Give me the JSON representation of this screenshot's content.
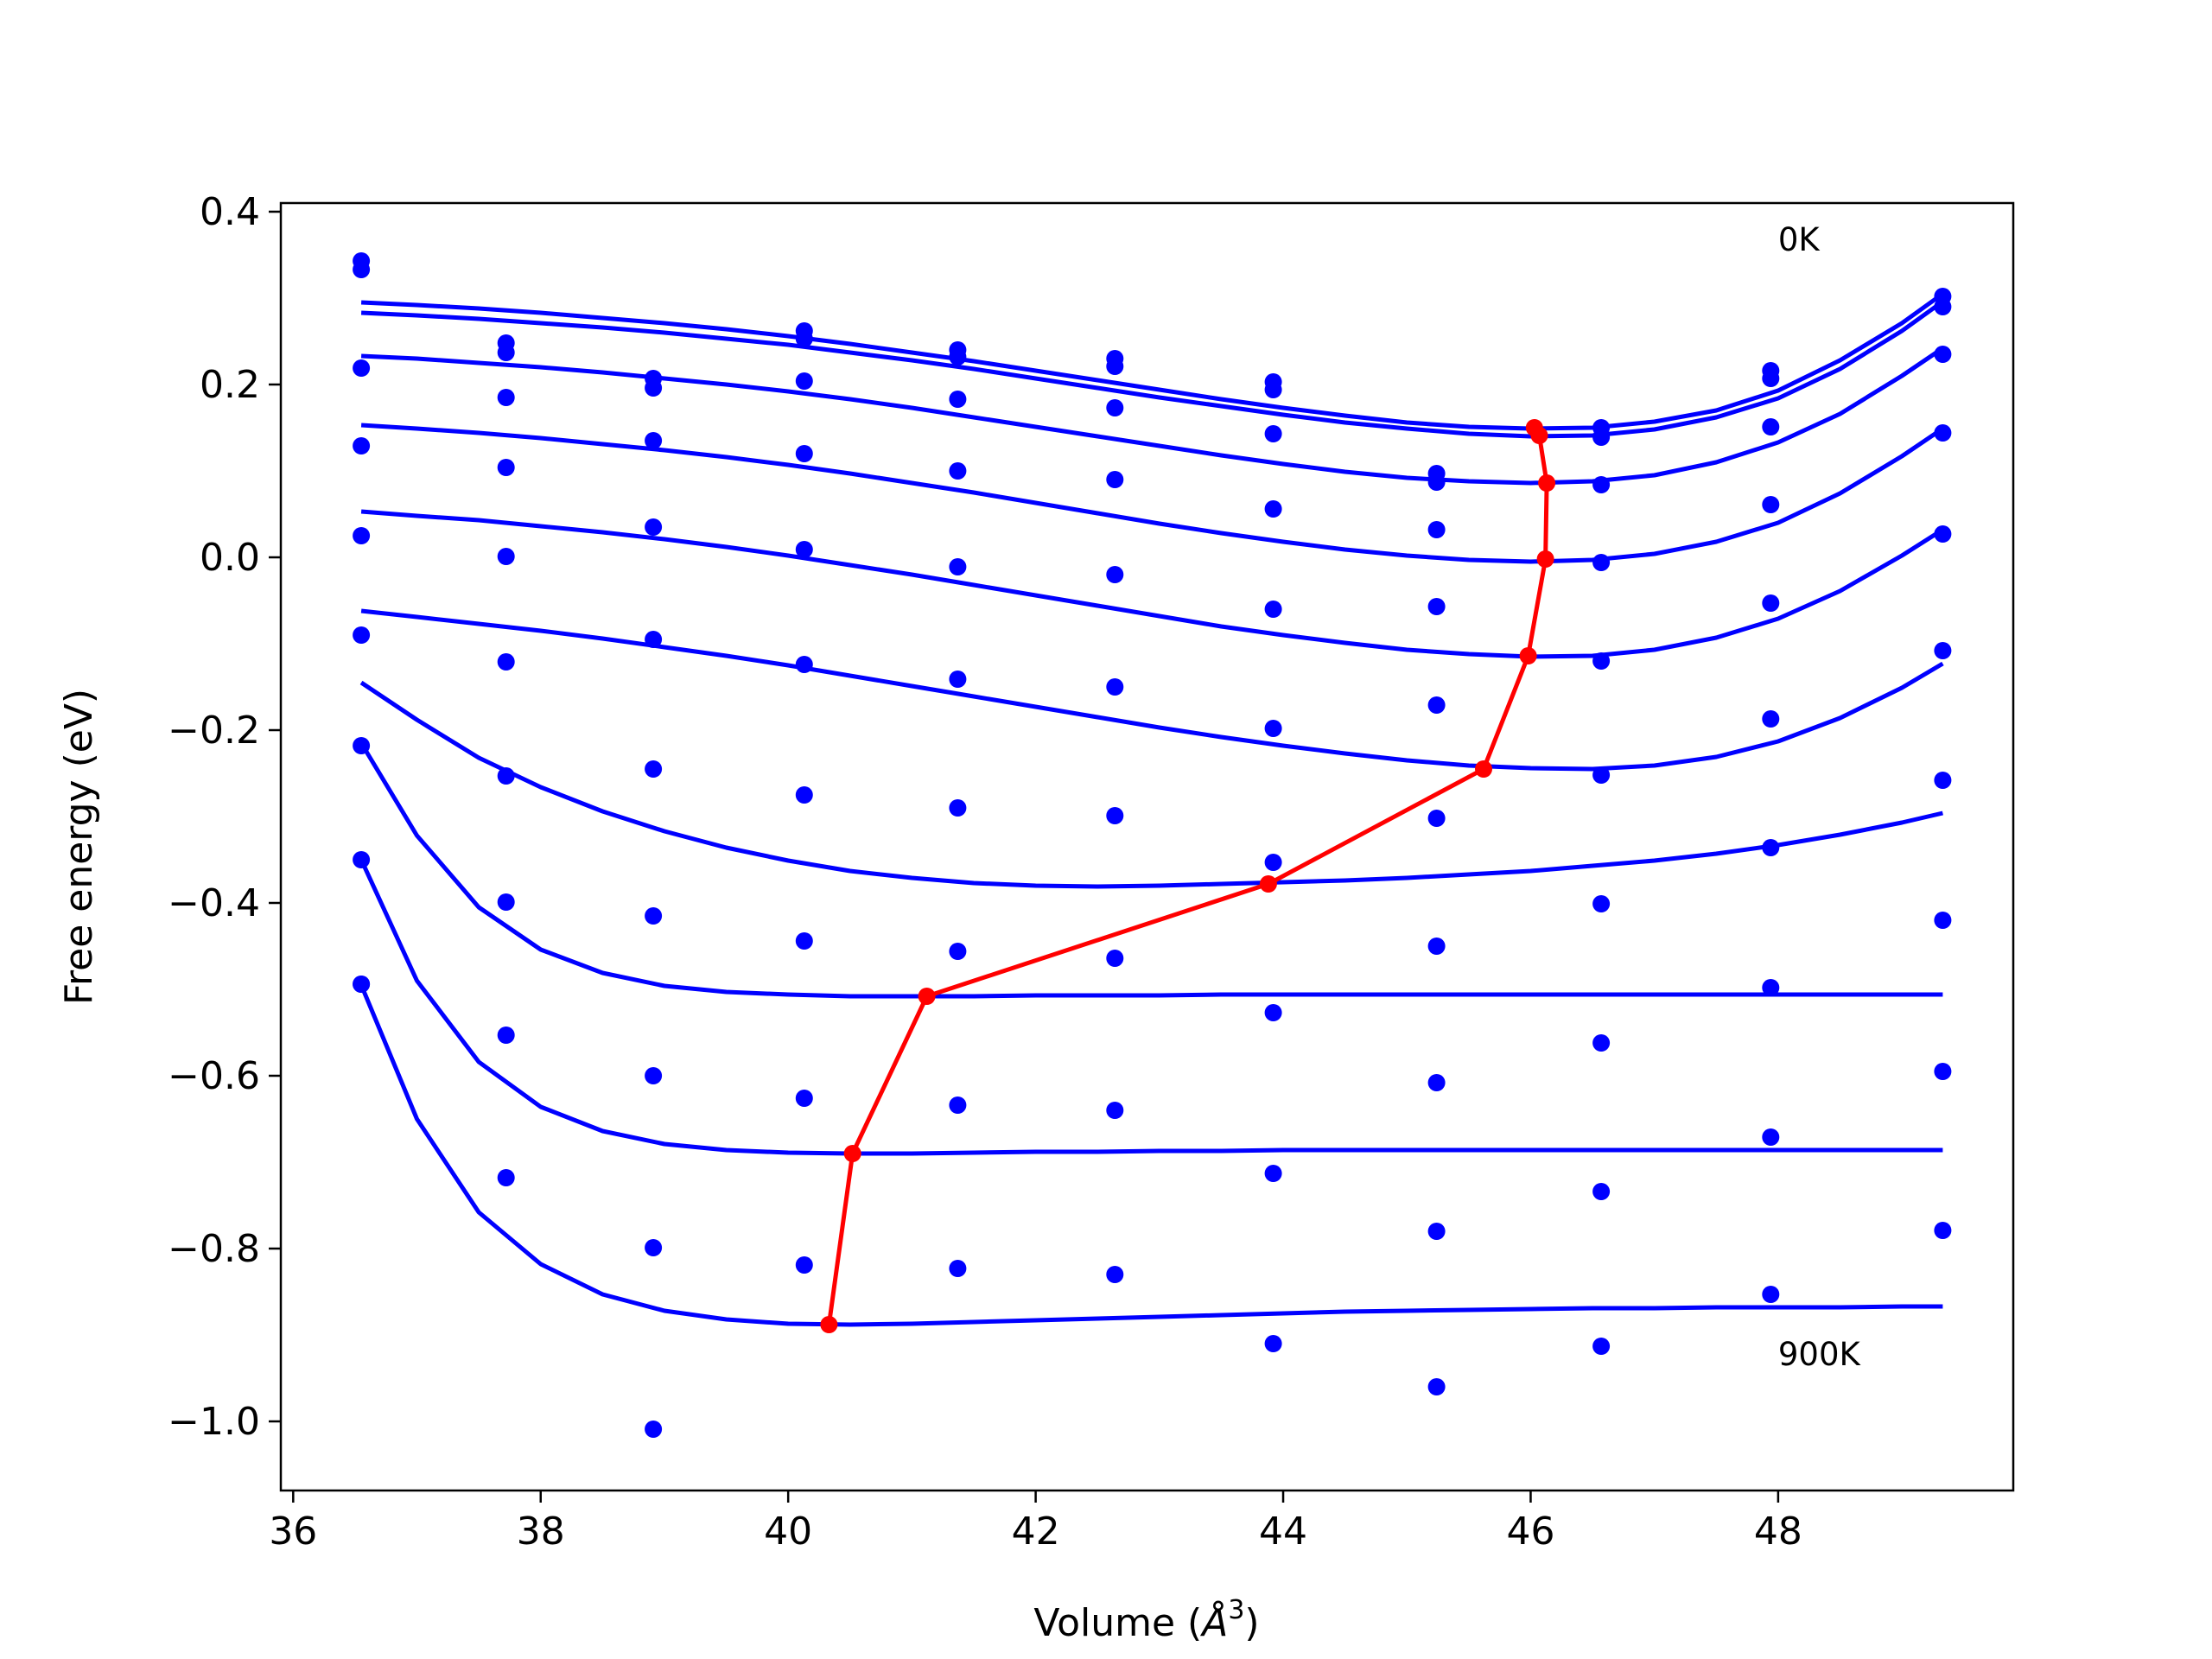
{
  "chart_data": {
    "type": "line",
    "xlabel_main": "Volume (",
    "xlabel_symbol": "Å",
    "xlabel_exp": "3",
    "xlabel_close": ")",
    "ylabel": "Free energy (eV)",
    "xlim": [
      35.9,
      49.9
    ],
    "ylim": [
      -1.08,
      0.41
    ],
    "xticks": [
      36,
      38,
      40,
      42,
      44,
      46,
      48
    ],
    "xtick_labels": [
      "36",
      "38",
      "40",
      "42",
      "44",
      "46",
      "48"
    ],
    "yticks": [
      0.4,
      0.2,
      0.0,
      -0.2,
      -0.4,
      -0.6,
      -0.8,
      -1.0
    ],
    "ytick_labels": [
      "0.4",
      "0.2",
      "0.0",
      "−0.2",
      "−0.4",
      "−0.6",
      "−0.8",
      "−1.0"
    ],
    "grid": false,
    "annotations": [
      {
        "text": "0K",
        "x": 48.0,
        "y": 0.355
      },
      {
        "text": "900K",
        "x": 48.0,
        "y": -0.935
      }
    ],
    "curve_color": "#0000ff",
    "minima_color": "#ff0000",
    "point_color": "#0000ff",
    "x_points": [
      36.55,
      37.72,
      38.91,
      40.13,
      41.37,
      42.64,
      43.92,
      45.24,
      46.57,
      47.94,
      49.33
    ],
    "point_series": [
      [
        0.343,
        0.248,
        0.207,
        0.262,
        0.24,
        0.23,
        0.203,
        0.097,
        0.15,
        0.216,
        0.302
      ],
      [
        0.333,
        0.237,
        0.196,
        0.253,
        0.232,
        0.221,
        0.194,
        0.087,
        0.139,
        0.207,
        0.29
      ],
      [
        0.219,
        0.185,
        0.135,
        0.204,
        0.183,
        0.173,
        0.143,
        0.032,
        0.084,
        0.151,
        0.235
      ],
      [
        0.129,
        0.104,
        0.035,
        0.12,
        0.1,
        0.09,
        0.056,
        -0.057,
        -0.006,
        0.061,
        0.144
      ],
      [
        0.025,
        0.001,
        -0.095,
        0.009,
        -0.011,
        -0.02,
        -0.06,
        -0.171,
        -0.12,
        -0.053,
        0.027
      ],
      [
        -0.09,
        -0.121,
        -0.245,
        -0.124,
        -0.141,
        -0.15,
        -0.198,
        -0.302,
        -0.252,
        -0.187,
        -0.108
      ],
      [
        -0.218,
        -0.253,
        -0.415,
        -0.275,
        -0.29,
        -0.299,
        -0.353,
        -0.45,
        -0.401,
        -0.336,
        -0.258
      ],
      [
        -0.35,
        -0.399,
        -0.6,
        -0.444,
        -0.456,
        -0.464,
        -0.527,
        -0.608,
        -0.562,
        -0.498,
        -0.42
      ],
      [
        -0.494,
        -0.553,
        -0.799,
        -0.626,
        -0.634,
        -0.64,
        -0.713,
        -0.78,
        -0.734,
        -0.671,
        -0.595
      ],
      [
        -0.494,
        -0.718,
        -1.009,
        -0.819,
        -0.823,
        -0.83,
        -0.91,
        -0.96,
        -0.913,
        -0.853,
        -0.779
      ]
    ],
    "curve_x": [
      36.55,
      37.0,
      37.5,
      38.0,
      38.5,
      39.0,
      39.5,
      40.0,
      40.5,
      41.0,
      41.5,
      42.0,
      42.5,
      43.0,
      43.5,
      44.0,
      44.5,
      45.0,
      45.5,
      46.0,
      46.5,
      47.0,
      47.5,
      48.0,
      48.5,
      49.0,
      49.33
    ],
    "curves": [
      [
        0.295,
        0.292,
        0.288,
        0.283,
        0.277,
        0.271,
        0.264,
        0.256,
        0.247,
        0.237,
        0.227,
        0.216,
        0.205,
        0.194,
        0.183,
        0.173,
        0.164,
        0.156,
        0.151,
        0.149,
        0.15,
        0.157,
        0.17,
        0.193,
        0.228,
        0.271,
        0.305
      ],
      [
        0.283,
        0.28,
        0.276,
        0.271,
        0.266,
        0.26,
        0.253,
        0.246,
        0.237,
        0.228,
        0.218,
        0.207,
        0.196,
        0.185,
        0.175,
        0.165,
        0.156,
        0.149,
        0.143,
        0.14,
        0.141,
        0.148,
        0.162,
        0.184,
        0.218,
        0.262,
        0.296
      ],
      [
        0.233,
        0.23,
        0.225,
        0.22,
        0.214,
        0.207,
        0.2,
        0.192,
        0.183,
        0.173,
        0.162,
        0.151,
        0.14,
        0.129,
        0.118,
        0.108,
        0.099,
        0.092,
        0.088,
        0.086,
        0.088,
        0.095,
        0.11,
        0.133,
        0.166,
        0.21,
        0.242
      ],
      [
        0.153,
        0.149,
        0.144,
        0.138,
        0.131,
        0.124,
        0.116,
        0.107,
        0.097,
        0.086,
        0.075,
        0.063,
        0.051,
        0.039,
        0.028,
        0.018,
        0.009,
        0.002,
        -0.003,
        -0.005,
        -0.003,
        0.004,
        0.018,
        0.04,
        0.074,
        0.117,
        0.149
      ],
      [
        0.053,
        0.048,
        0.043,
        0.036,
        0.029,
        0.021,
        0.012,
        0.002,
        -0.009,
        -0.02,
        -0.032,
        -0.044,
        -0.056,
        -0.068,
        -0.08,
        -0.09,
        -0.099,
        -0.107,
        -0.112,
        -0.115,
        -0.114,
        -0.107,
        -0.093,
        -0.071,
        -0.039,
        0.002,
        0.032
      ],
      [
        -0.062,
        -0.069,
        -0.077,
        -0.085,
        -0.094,
        -0.104,
        -0.114,
        -0.125,
        -0.137,
        -0.149,
        -0.161,
        -0.173,
        -0.185,
        -0.197,
        -0.208,
        -0.218,
        -0.227,
        -0.235,
        -0.241,
        -0.244,
        -0.245,
        -0.241,
        -0.231,
        -0.213,
        -0.186,
        -0.151,
        -0.123
      ],
      [
        -0.145,
        -0.188,
        -0.232,
        -0.266,
        -0.294,
        -0.317,
        -0.336,
        -0.351,
        -0.363,
        -0.371,
        -0.377,
        -0.38,
        -0.381,
        -0.38,
        -0.378,
        -0.376,
        -0.374,
        -0.371,
        -0.367,
        -0.363,
        -0.357,
        -0.351,
        -0.343,
        -0.333,
        -0.321,
        -0.307,
        -0.296
      ],
      [
        -0.215,
        -0.322,
        -0.405,
        -0.454,
        -0.481,
        -0.496,
        -0.503,
        -0.506,
        -0.508,
        -0.508,
        -0.508,
        -0.507,
        -0.507,
        -0.507,
        -0.506,
        -0.506,
        -0.506,
        -0.506,
        -0.506,
        -0.506,
        -0.506,
        -0.506,
        -0.506,
        -0.506,
        -0.506,
        -0.506,
        -0.506
      ],
      [
        -0.35,
        -0.49,
        -0.584,
        -0.636,
        -0.664,
        -0.679,
        -0.686,
        -0.689,
        -0.69,
        -0.69,
        -0.689,
        -0.688,
        -0.688,
        -0.687,
        -0.687,
        -0.686,
        -0.686,
        -0.686,
        -0.686,
        -0.686,
        -0.686,
        -0.686,
        -0.686,
        -0.686,
        -0.686,
        -0.686,
        -0.686
      ],
      [
        -0.495,
        -0.65,
        -0.758,
        -0.818,
        -0.853,
        -0.872,
        -0.882,
        -0.887,
        -0.888,
        -0.887,
        -0.885,
        -0.883,
        -0.881,
        -0.879,
        -0.877,
        -0.875,
        -0.873,
        -0.872,
        -0.871,
        -0.87,
        -0.869,
        -0.869,
        -0.868,
        -0.868,
        -0.868,
        -0.867,
        -0.867
      ]
    ],
    "minima": {
      "x": [
        46.03,
        46.07,
        46.13,
        46.12,
        45.98,
        45.62,
        43.88,
        41.12,
        40.52,
        40.33
      ],
      "y": [
        0.15,
        0.141,
        0.086,
        -0.002,
        -0.114,
        -0.245,
        -0.378,
        -0.508,
        -0.69,
        -0.888
      ]
    }
  }
}
